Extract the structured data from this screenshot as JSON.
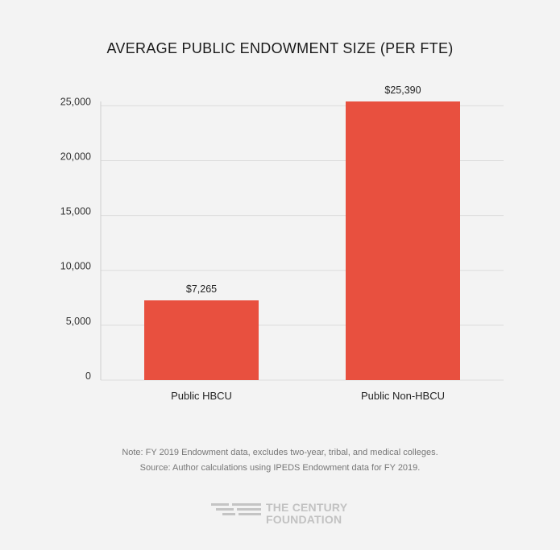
{
  "chart_data": {
    "type": "bar",
    "title": "AVERAGE PUBLIC ENDOWMENT SIZE (PER FTE)",
    "categories": [
      "Public HBCU",
      "Public Non-HBCU"
    ],
    "values": [
      7265,
      25390
    ],
    "data_labels": [
      "$7,265",
      "$25,390"
    ],
    "ylim": [
      0,
      25390
    ],
    "yticks": [
      0,
      5000,
      10000,
      15000,
      20000,
      25000
    ],
    "ytick_labels": [
      "0",
      "5,000",
      "10,000",
      "15,000",
      "20,000",
      "25,000"
    ],
    "xlabel": "",
    "ylabel": "",
    "grid": true,
    "bar_color": "#e8503f"
  },
  "notes": {
    "note": "Note: FY 2019 Endowment data, excludes two-year, tribal, and medical colleges.",
    "source": "Source:  Author calculations using IPEDS Endowment data for FY 2019."
  },
  "logo": {
    "line1": "THE CENTURY",
    "line2": "FOUNDATION"
  }
}
